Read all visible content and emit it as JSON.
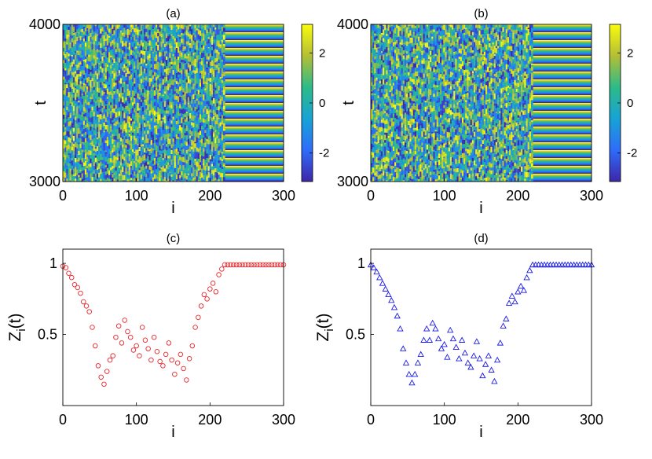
{
  "chart_data": [
    {
      "panel": "(a)",
      "type": "heatmap",
      "title": "(a)",
      "xlabel": "i",
      "ylabel": "t",
      "xlim": [
        0,
        300
      ],
      "ylim": [
        3000,
        4000
      ],
      "xticks": [
        "0",
        "100",
        "200",
        "300"
      ],
      "yticks": [
        "3000",
        "4000"
      ],
      "colorbar": {
        "ticks": [
          "2",
          "0",
          "-2"
        ],
        "tick_values": [
          2,
          0,
          -2
        ],
        "range": [
          -3.14,
          3.14
        ]
      },
      "bands": 20,
      "incoherent_range": [
        0,
        220
      ],
      "coherent_range": [
        220,
        300
      ],
      "seed": 7
    },
    {
      "panel": "(b)",
      "type": "heatmap",
      "title": "(b)",
      "xlabel": "i",
      "ylabel": "t",
      "xlim": [
        0,
        300
      ],
      "ylim": [
        3000,
        4000
      ],
      "xticks": [
        "0",
        "100",
        "200",
        "300"
      ],
      "yticks": [
        "3000",
        "4000"
      ],
      "colorbar": {
        "ticks": [
          "2",
          "0",
          "-2"
        ],
        "tick_values": [
          2,
          0,
          -2
        ],
        "range": [
          -3.14,
          3.14
        ]
      },
      "bands": 20,
      "incoherent_range": [
        0,
        220
      ],
      "coherent_range": [
        220,
        300
      ],
      "seed": 13
    },
    {
      "panel": "(c)",
      "type": "scatter",
      "title": "(c)",
      "xlabel": "i",
      "ylabel": "Z_i(t)",
      "xlim": [
        0,
        300
      ],
      "ylim": [
        0,
        1.1
      ],
      "xticks": [
        "0",
        "100",
        "200",
        "300"
      ],
      "yticks": [
        "1",
        "0.5"
      ],
      "ytick_values": [
        1,
        0.5
      ],
      "marker": "circle",
      "color": "#e8262b",
      "x": [
        0,
        4,
        8,
        12,
        16,
        20,
        24,
        28,
        32,
        36,
        40,
        44,
        48,
        52,
        56,
        60,
        64,
        68,
        72,
        76,
        80,
        84,
        88,
        92,
        96,
        100,
        104,
        108,
        112,
        116,
        120,
        124,
        128,
        132,
        136,
        140,
        144,
        148,
        152,
        156,
        160,
        164,
        168,
        172,
        176,
        180,
        184,
        188,
        192,
        196,
        200,
        204,
        208,
        212,
        216,
        220,
        224,
        228,
        232,
        236,
        240,
        244,
        248,
        252,
        256,
        260,
        264,
        268,
        272,
        276,
        280,
        284,
        288,
        292,
        296,
        300
      ],
      "values": [
        0.98,
        0.97,
        0.93,
        0.9,
        0.85,
        0.83,
        0.79,
        0.73,
        0.7,
        0.66,
        0.55,
        0.42,
        0.28,
        0.2,
        0.15,
        0.24,
        0.32,
        0.35,
        0.48,
        0.56,
        0.44,
        0.6,
        0.52,
        0.48,
        0.39,
        0.42,
        0.35,
        0.55,
        0.46,
        0.4,
        0.32,
        0.48,
        0.38,
        0.31,
        0.28,
        0.36,
        0.44,
        0.32,
        0.22,
        0.3,
        0.36,
        0.26,
        0.18,
        0.33,
        0.42,
        0.55,
        0.62,
        0.7,
        0.78,
        0.75,
        0.82,
        0.86,
        0.8,
        0.92,
        0.96,
        0.99,
        0.99,
        0.99,
        0.99,
        0.99,
        0.99,
        0.99,
        0.99,
        0.99,
        0.99,
        0.99,
        0.99,
        0.99,
        0.99,
        0.99,
        0.99,
        0.99,
        0.99,
        0.99,
        0.99,
        0.99
      ]
    },
    {
      "panel": "(d)",
      "type": "scatter",
      "title": "(d)",
      "xlabel": "i",
      "ylabel": "Z_i(t)",
      "xlim": [
        0,
        300
      ],
      "ylim": [
        0,
        1.1
      ],
      "xticks": [
        "0",
        "100",
        "200",
        "300"
      ],
      "yticks": [
        "1",
        "0.5"
      ],
      "ytick_values": [
        1,
        0.5
      ],
      "marker": "triangle",
      "color": "#1a1ae6",
      "x": [
        0,
        4,
        8,
        12,
        16,
        20,
        24,
        28,
        32,
        36,
        40,
        44,
        48,
        52,
        56,
        60,
        64,
        68,
        72,
        76,
        80,
        84,
        88,
        92,
        96,
        100,
        104,
        108,
        112,
        116,
        120,
        124,
        128,
        132,
        136,
        140,
        144,
        148,
        152,
        156,
        160,
        164,
        168,
        172,
        176,
        180,
        184,
        188,
        192,
        196,
        200,
        204,
        208,
        212,
        216,
        220,
        224,
        228,
        232,
        236,
        240,
        244,
        248,
        252,
        256,
        260,
        264,
        268,
        272,
        276,
        280,
        284,
        288,
        292,
        296,
        300
      ],
      "values": [
        0.99,
        0.97,
        0.94,
        0.9,
        0.86,
        0.82,
        0.78,
        0.74,
        0.69,
        0.63,
        0.54,
        0.4,
        0.3,
        0.22,
        0.16,
        0.22,
        0.3,
        0.36,
        0.46,
        0.54,
        0.46,
        0.58,
        0.54,
        0.47,
        0.4,
        0.43,
        0.34,
        0.53,
        0.47,
        0.41,
        0.33,
        0.46,
        0.37,
        0.3,
        0.27,
        0.35,
        0.45,
        0.33,
        0.21,
        0.29,
        0.35,
        0.25,
        0.17,
        0.32,
        0.44,
        0.56,
        0.61,
        0.72,
        0.77,
        0.73,
        0.8,
        0.84,
        0.81,
        0.9,
        0.95,
        0.99,
        0.99,
        0.99,
        0.99,
        0.99,
        0.99,
        0.99,
        0.99,
        0.99,
        0.99,
        0.99,
        0.99,
        0.99,
        0.99,
        0.99,
        0.99,
        0.99,
        0.99,
        0.99,
        0.99,
        0.99
      ]
    }
  ]
}
